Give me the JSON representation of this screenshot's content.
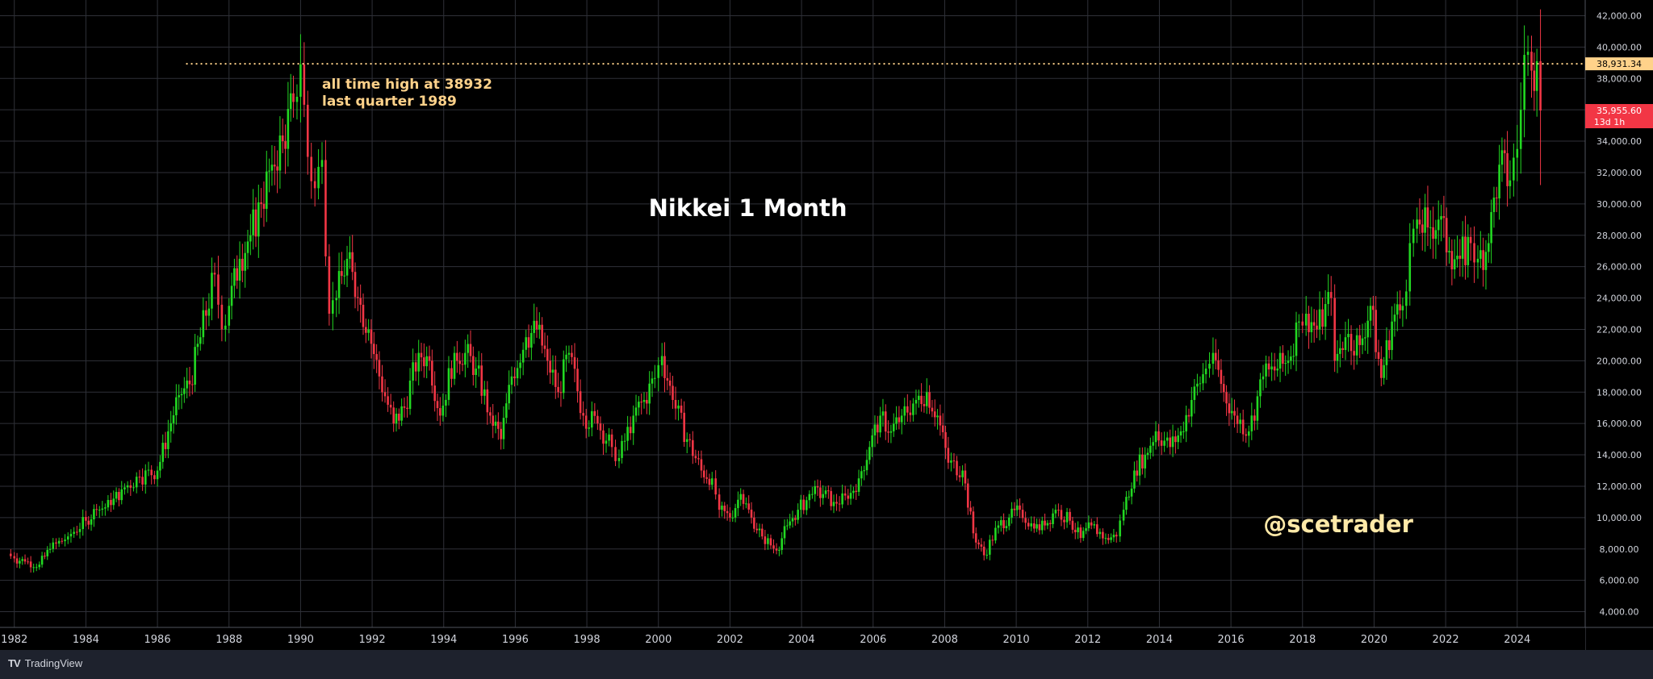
{
  "chart_data": {
    "type": "candlestick",
    "title": "Nikkei 1 Month",
    "watermark": "@scetrader",
    "annotation": [
      "all time high at 38932",
      "last quarter 1989"
    ],
    "x_ticks": [
      "1982",
      "1984",
      "1986",
      "1988",
      "1990",
      "1992",
      "1994",
      "1996",
      "1998",
      "2000",
      "2002",
      "2004",
      "2006",
      "2008",
      "2010",
      "2012",
      "2014",
      "2016",
      "2018",
      "2020",
      "2022",
      "2024"
    ],
    "y_ticks": [
      "42,000.00",
      "40,000.00",
      "38,000.00",
      "36,000.00",
      "34,000.00",
      "32,000.00",
      "30,000.00",
      "28,000.00",
      "26,000.00",
      "24,000.00",
      "22,000.00",
      "20,000.00",
      "18,000.00",
      "16,000.00",
      "14,000.00",
      "12,000.00",
      "10,000.00",
      "8,000.00",
      "6,000.00",
      "4,000.00"
    ],
    "ylim": [
      3000,
      43000
    ],
    "xlim": [
      1981.6,
      2025.9
    ],
    "ath_line": {
      "value": 38931.34,
      "label": "38,931.34",
      "start_year": 1986.8
    },
    "last_price": {
      "value": 35955.6,
      "label": "35,955.60",
      "countdown": "13d 1h"
    },
    "colors": {
      "up": "#22d822",
      "down": "#f23645",
      "background": "#000000",
      "grid": "#2f3138",
      "axis_text": "#d1d4dc",
      "annotation": "#ffd28a",
      "ath_tag": "#ffd28a",
      "last_tag": "#f23645",
      "watermark": "#ffe9a8"
    },
    "series": [
      {
        "year": 1981.8,
        "close": 7700
      },
      {
        "year": 1982.0,
        "close": 7400
      },
      {
        "year": 1982.3,
        "close": 7200
      },
      {
        "year": 1982.7,
        "close": 7000
      },
      {
        "year": 1983.0,
        "close": 8000
      },
      {
        "year": 1983.5,
        "close": 8800
      },
      {
        "year": 1984.0,
        "close": 9800
      },
      {
        "year": 1984.3,
        "close": 10500
      },
      {
        "year": 1984.7,
        "close": 10800
      },
      {
        "year": 1985.0,
        "close": 11800
      },
      {
        "year": 1985.5,
        "close": 12600
      },
      {
        "year": 1986.0,
        "close": 13000
      },
      {
        "year": 1986.3,
        "close": 15500
      },
      {
        "year": 1986.6,
        "close": 17800
      },
      {
        "year": 1986.9,
        "close": 18500
      },
      {
        "year": 1987.2,
        "close": 21500
      },
      {
        "year": 1987.6,
        "close": 25500
      },
      {
        "year": 1987.8,
        "close": 22000
      },
      {
        "year": 1988.0,
        "close": 23500
      },
      {
        "year": 1988.3,
        "close": 26500
      },
      {
        "year": 1988.6,
        "close": 28000
      },
      {
        "year": 1988.9,
        "close": 30000
      },
      {
        "year": 1989.2,
        "close": 32500
      },
      {
        "year": 1989.5,
        "close": 34000
      },
      {
        "year": 1989.8,
        "close": 36500
      },
      {
        "year": 1990.0,
        "close": 38900
      },
      {
        "year": 1990.2,
        "close": 33000
      },
      {
        "year": 1990.4,
        "close": 31000
      },
      {
        "year": 1990.6,
        "close": 32800
      },
      {
        "year": 1990.8,
        "close": 23000
      },
      {
        "year": 1991.0,
        "close": 24000
      },
      {
        "year": 1991.3,
        "close": 26500
      },
      {
        "year": 1991.6,
        "close": 24000
      },
      {
        "year": 1991.9,
        "close": 22000
      },
      {
        "year": 1992.2,
        "close": 19000
      },
      {
        "year": 1992.6,
        "close": 16000
      },
      {
        "year": 1992.9,
        "close": 17000
      },
      {
        "year": 1993.3,
        "close": 20500
      },
      {
        "year": 1993.6,
        "close": 20000
      },
      {
        "year": 1993.9,
        "close": 16500
      },
      {
        "year": 1994.3,
        "close": 20500
      },
      {
        "year": 1994.6,
        "close": 20500
      },
      {
        "year": 1994.9,
        "close": 19500
      },
      {
        "year": 1995.3,
        "close": 16500
      },
      {
        "year": 1995.6,
        "close": 15000
      },
      {
        "year": 1995.9,
        "close": 19000
      },
      {
        "year": 1996.3,
        "close": 21500
      },
      {
        "year": 1996.6,
        "close": 22000
      },
      {
        "year": 1996.9,
        "close": 20000
      },
      {
        "year": 1997.2,
        "close": 18000
      },
      {
        "year": 1997.5,
        "close": 20500
      },
      {
        "year": 1997.9,
        "close": 16500
      },
      {
        "year": 1998.3,
        "close": 16000
      },
      {
        "year": 1998.7,
        "close": 14500
      },
      {
        "year": 1998.9,
        "close": 13800
      },
      {
        "year": 1999.3,
        "close": 16500
      },
      {
        "year": 1999.6,
        "close": 17500
      },
      {
        "year": 1999.9,
        "close": 18900
      },
      {
        "year": 2000.1,
        "close": 20300
      },
      {
        "year": 2000.4,
        "close": 17500
      },
      {
        "year": 2000.8,
        "close": 15000
      },
      {
        "year": 2001.2,
        "close": 13000
      },
      {
        "year": 2001.5,
        "close": 12500
      },
      {
        "year": 2001.7,
        "close": 10500
      },
      {
        "year": 2002.0,
        "close": 10000
      },
      {
        "year": 2002.3,
        "close": 11500
      },
      {
        "year": 2002.6,
        "close": 10000
      },
      {
        "year": 2002.9,
        "close": 8800
      },
      {
        "year": 2003.3,
        "close": 7900
      },
      {
        "year": 2003.6,
        "close": 9500
      },
      {
        "year": 2003.9,
        "close": 10500
      },
      {
        "year": 2004.3,
        "close": 11500
      },
      {
        "year": 2004.6,
        "close": 11500
      },
      {
        "year": 2004.9,
        "close": 11000
      },
      {
        "year": 2005.3,
        "close": 11200
      },
      {
        "year": 2005.6,
        "close": 12500
      },
      {
        "year": 2005.9,
        "close": 14500
      },
      {
        "year": 2006.2,
        "close": 16500
      },
      {
        "year": 2006.5,
        "close": 15500
      },
      {
        "year": 2006.8,
        "close": 16500
      },
      {
        "year": 2007.2,
        "close": 17500
      },
      {
        "year": 2007.5,
        "close": 18000
      },
      {
        "year": 2007.8,
        "close": 16500
      },
      {
        "year": 2008.1,
        "close": 13500
      },
      {
        "year": 2008.5,
        "close": 13000
      },
      {
        "year": 2008.8,
        "close": 9000
      },
      {
        "year": 2009.1,
        "close": 7600
      },
      {
        "year": 2009.5,
        "close": 9500
      },
      {
        "year": 2009.8,
        "close": 10000
      },
      {
        "year": 2010.1,
        "close": 10500
      },
      {
        "year": 2010.5,
        "close": 9300
      },
      {
        "year": 2010.8,
        "close": 9500
      },
      {
        "year": 2011.1,
        "close": 10500
      },
      {
        "year": 2011.5,
        "close": 9800
      },
      {
        "year": 2011.8,
        "close": 8700
      },
      {
        "year": 2012.1,
        "close": 9500
      },
      {
        "year": 2012.5,
        "close": 8700
      },
      {
        "year": 2012.8,
        "close": 8800
      },
      {
        "year": 2013.0,
        "close": 10500
      },
      {
        "year": 2013.3,
        "close": 13000
      },
      {
        "year": 2013.6,
        "close": 14000
      },
      {
        "year": 2013.9,
        "close": 15500
      },
      {
        "year": 2014.3,
        "close": 14500
      },
      {
        "year": 2014.6,
        "close": 15500
      },
      {
        "year": 2014.9,
        "close": 17500
      },
      {
        "year": 2015.3,
        "close": 19500
      },
      {
        "year": 2015.5,
        "close": 20500
      },
      {
        "year": 2015.8,
        "close": 18000
      },
      {
        "year": 2016.1,
        "close": 16500
      },
      {
        "year": 2016.5,
        "close": 15500
      },
      {
        "year": 2016.9,
        "close": 19000
      },
      {
        "year": 2017.3,
        "close": 19500
      },
      {
        "year": 2017.6,
        "close": 20000
      },
      {
        "year": 2017.9,
        "close": 22500
      },
      {
        "year": 2018.1,
        "close": 23000
      },
      {
        "year": 2018.4,
        "close": 22000
      },
      {
        "year": 2018.8,
        "close": 24000
      },
      {
        "year": 2018.9,
        "close": 20000
      },
      {
        "year": 2019.2,
        "close": 21500
      },
      {
        "year": 2019.6,
        "close": 21000
      },
      {
        "year": 2019.9,
        "close": 23500
      },
      {
        "year": 2020.2,
        "close": 18900
      },
      {
        "year": 2020.5,
        "close": 22500
      },
      {
        "year": 2020.8,
        "close": 23500
      },
      {
        "year": 2021.0,
        "close": 27500
      },
      {
        "year": 2021.2,
        "close": 29000
      },
      {
        "year": 2021.5,
        "close": 28500
      },
      {
        "year": 2021.8,
        "close": 29000
      },
      {
        "year": 2022.1,
        "close": 27000
      },
      {
        "year": 2022.4,
        "close": 26500
      },
      {
        "year": 2022.7,
        "close": 27500
      },
      {
        "year": 2022.9,
        "close": 26500
      },
      {
        "year": 2023.2,
        "close": 27500
      },
      {
        "year": 2023.5,
        "close": 32500
      },
      {
        "year": 2023.8,
        "close": 31500
      },
      {
        "year": 2024.0,
        "close": 33500
      },
      {
        "year": 2024.2,
        "close": 39500
      },
      {
        "year": 2024.4,
        "close": 38500
      },
      {
        "year": 2024.55,
        "close": 39100
      },
      {
        "year": 2024.65,
        "close": 35955.6
      }
    ]
  },
  "footer": {
    "brand": "TradingView",
    "logo": "TV"
  }
}
